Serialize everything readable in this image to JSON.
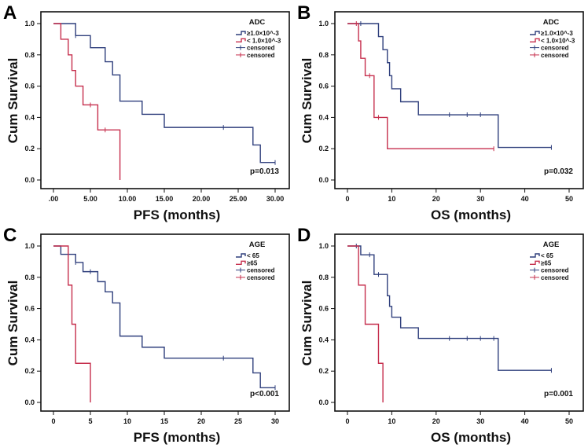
{
  "colors": {
    "blue": "#2f3f7c",
    "red": "#c62f4d",
    "frame": "#111111"
  },
  "chart_data": [
    {
      "panel": "A",
      "type": "line",
      "step": true,
      "xlabel": "PFS (months)",
      "ylabel": "Cum Survival",
      "xlim": [
        0,
        30
      ],
      "ylim": [
        0,
        1
      ],
      "xticks": [
        0,
        5,
        10,
        15,
        20,
        25,
        30
      ],
      "xtick_labels": [
        ".00",
        "5.00",
        "10.00",
        "15.00",
        "20.00",
        "25.00",
        "30.00"
      ],
      "yticks": [
        0,
        0.2,
        0.4,
        0.6,
        0.8,
        1.0
      ],
      "ytick_labels": [
        "0.0",
        "0.2",
        "0.4",
        "0.6",
        "0.8",
        "1.0"
      ],
      "legend_title": "ADC",
      "legend_position": "top-right",
      "legend": [
        "≥1.0×10^-3",
        "< 1.0×10^-3",
        "censored",
        "censored"
      ],
      "p_value": "p=0.013",
      "series": [
        {
          "name": "≥1.0×10^-3",
          "color": "blue",
          "steps": [
            [
              0,
              1.0
            ],
            [
              3,
              0.923
            ],
            [
              5,
              0.846
            ],
            [
              7,
              0.756
            ],
            [
              8,
              0.672
            ],
            [
              9,
              0.504
            ],
            [
              12,
              0.42
            ],
            [
              15,
              0.336
            ],
            [
              27,
              0.224
            ],
            [
              28,
              0.112
            ]
          ],
          "end": 30,
          "censored": [
            3,
            23,
            30
          ]
        },
        {
          "name": "< 1.0×10^-3",
          "color": "red",
          "steps": [
            [
              0,
              1.0
            ],
            [
              1,
              0.9
            ],
            [
              2,
              0.8
            ],
            [
              2.5,
              0.7
            ],
            [
              3,
              0.6
            ],
            [
              4,
              0.48
            ],
            [
              6,
              0.32
            ],
            [
              9,
              0.0
            ]
          ],
          "end": 9,
          "censored": [
            5,
            7
          ]
        }
      ]
    },
    {
      "panel": "B",
      "type": "line",
      "step": true,
      "xlabel": "OS (months)",
      "ylabel": "Cum Survival",
      "xlim": [
        0,
        50
      ],
      "ylim": [
        0,
        1
      ],
      "xticks": [
        0,
        10,
        20,
        30,
        40,
        50
      ],
      "xtick_labels": [
        "0",
        "10",
        "20",
        "30",
        "40",
        "50"
      ],
      "yticks": [
        0,
        0.2,
        0.4,
        0.6,
        0.8,
        1.0
      ],
      "ytick_labels": [
        "0.0",
        "0.2",
        "0.4",
        "0.6",
        "0.8",
        "1.0"
      ],
      "legend_title": "ADC",
      "legend_position": "top-right",
      "legend": [
        "≥1.0×10^-3",
        "< 1.0×10^-3",
        "censored",
        "censored"
      ],
      "p_value": "p=0.032",
      "series": [
        {
          "name": "≥1.0×10^-3",
          "color": "blue",
          "steps": [
            [
              0,
              1.0
            ],
            [
              7,
              0.917
            ],
            [
              8,
              0.833
            ],
            [
              9,
              0.75
            ],
            [
              9.5,
              0.667
            ],
            [
              10,
              0.583
            ],
            [
              12,
              0.5
            ],
            [
              16,
              0.417
            ],
            [
              34,
              0.208
            ]
          ],
          "end": 46,
          "censored": [
            3,
            23,
            27,
            30,
            46
          ]
        },
        {
          "name": "< 1.0×10^-3",
          "color": "red",
          "steps": [
            [
              0,
              1.0
            ],
            [
              2.5,
              0.889
            ],
            [
              3,
              0.778
            ],
            [
              4,
              0.667
            ],
            [
              6,
              0.4
            ],
            [
              9,
              0.2
            ]
          ],
          "end": 33,
          "censored": [
            2,
            5,
            7,
            33
          ]
        }
      ]
    },
    {
      "panel": "C",
      "type": "line",
      "step": true,
      "xlabel": "PFS (months)",
      "ylabel": "Cum Survival",
      "xlim": [
        0,
        30
      ],
      "ylim": [
        0,
        1
      ],
      "xticks": [
        0,
        5,
        10,
        15,
        20,
        25,
        30
      ],
      "xtick_labels": [
        "0",
        "5",
        "10",
        "15",
        "20",
        "25",
        "30"
      ],
      "yticks": [
        0,
        0.2,
        0.4,
        0.6,
        0.8,
        1.0
      ],
      "ytick_labels": [
        "0.0",
        "0.2",
        "0.4",
        "0.6",
        "0.8",
        "1.0"
      ],
      "legend_title": "AGE",
      "legend_position": "top-right",
      "legend": [
        "< 65",
        "≥65",
        "censored",
        "censored"
      ],
      "p_value": "p<0.001",
      "series": [
        {
          "name": "< 65",
          "color": "blue",
          "steps": [
            [
              0,
              1.0
            ],
            [
              1,
              0.947
            ],
            [
              3,
              0.895
            ],
            [
              4,
              0.836
            ],
            [
              6,
              0.772
            ],
            [
              7,
              0.707
            ],
            [
              8,
              0.636
            ],
            [
              9,
              0.424
            ],
            [
              12,
              0.353
            ],
            [
              15,
              0.283
            ],
            [
              27,
              0.189
            ],
            [
              28,
              0.094
            ]
          ],
          "end": 30,
          "censored": [
            3,
            5,
            23,
            30
          ]
        },
        {
          "name": "≥65",
          "color": "red",
          "steps": [
            [
              0,
              1.0
            ],
            [
              2,
              0.75
            ],
            [
              2.5,
              0.5
            ],
            [
              3,
              0.25
            ],
            [
              5,
              0.0
            ]
          ],
          "end": 5,
          "censored": []
        }
      ]
    },
    {
      "panel": "D",
      "type": "line",
      "step": true,
      "xlabel": "OS (months)",
      "ylabel": "Cum Survival",
      "xlim": [
        0,
        50
      ],
      "ylim": [
        0,
        1
      ],
      "xticks": [
        0,
        10,
        20,
        30,
        40,
        50
      ],
      "xtick_labels": [
        "0",
        "10",
        "20",
        "30",
        "40",
        "50"
      ],
      "yticks": [
        0,
        0.2,
        0.4,
        0.6,
        0.8,
        1.0
      ],
      "ytick_labels": [
        "0.0",
        "0.2",
        "0.4",
        "0.6",
        "0.8",
        "1.0"
      ],
      "legend_title": "AGE",
      "legend_position": "top-right",
      "legend": [
        "< 65",
        "≥65",
        "censored",
        "censored"
      ],
      "p_value": "p=0.001",
      "series": [
        {
          "name": "< 65",
          "color": "blue",
          "steps": [
            [
              0,
              1.0
            ],
            [
              3,
              0.944
            ],
            [
              6,
              0.818
            ],
            [
              9,
              0.682
            ],
            [
              9.5,
              0.614
            ],
            [
              10,
              0.545
            ],
            [
              12,
              0.477
            ],
            [
              16,
              0.409
            ],
            [
              34,
              0.205
            ]
          ],
          "end": 46,
          "censored": [
            2,
            5,
            7,
            23,
            27,
            30,
            33,
            46
          ]
        },
        {
          "name": "≥65",
          "color": "red",
          "steps": [
            [
              0,
              1.0
            ],
            [
              2.5,
              0.75
            ],
            [
              4,
              0.5
            ],
            [
              7,
              0.25
            ],
            [
              8,
              0.0
            ]
          ],
          "end": 8,
          "censored": []
        }
      ]
    }
  ]
}
